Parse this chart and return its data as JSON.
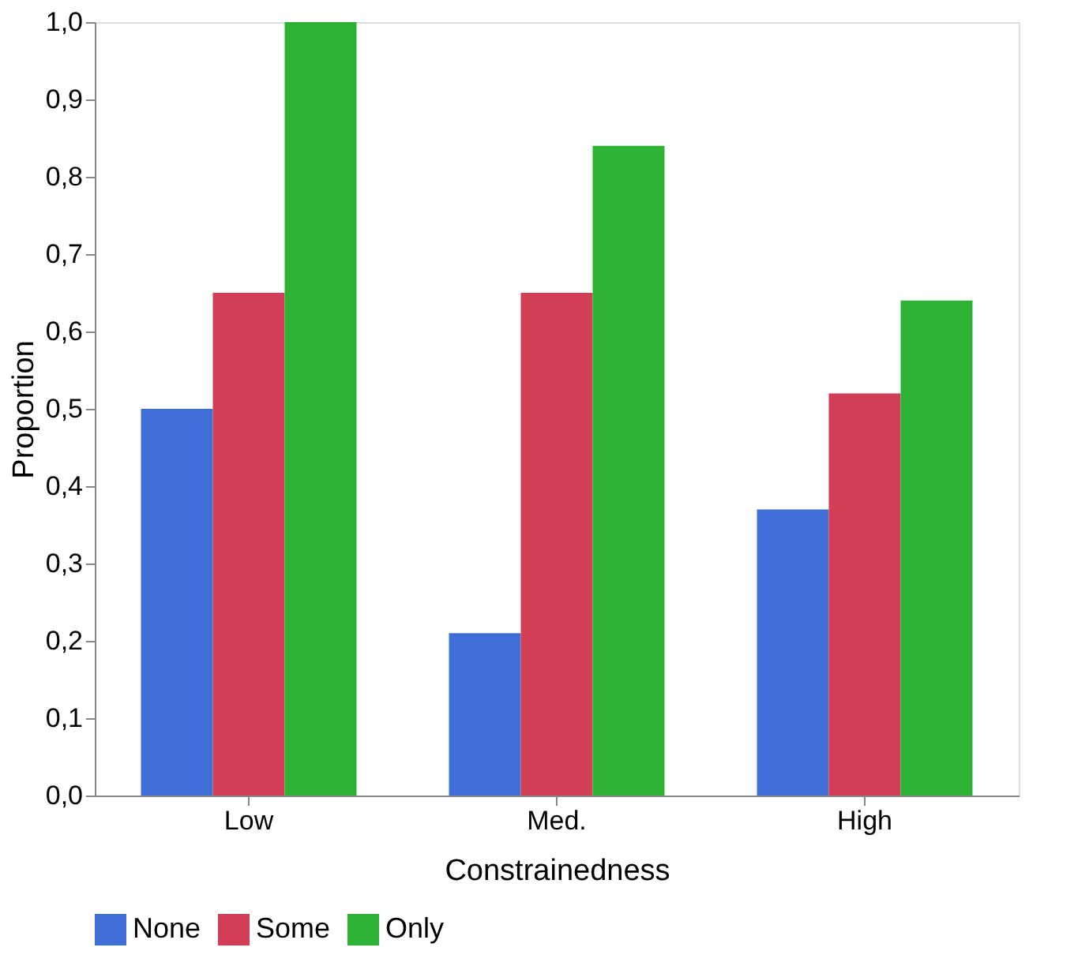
{
  "chart_data": {
    "type": "bar",
    "xlabel": "Constrainedness",
    "ylabel": "Proportion",
    "categories": [
      "Low",
      "Med.",
      "High"
    ],
    "series": [
      {
        "name": "None",
        "color": "#3f6fd6",
        "values": [
          0.5,
          0.21,
          0.37
        ]
      },
      {
        "name": "Some",
        "color": "#d03f55",
        "values": [
          0.65,
          0.65,
          0.52
        ]
      },
      {
        "name": "Only",
        "color": "#2eb236",
        "values": [
          1.0,
          0.84,
          0.64
        ]
      }
    ],
    "ylim": [
      0,
      1
    ],
    "yticks": [
      {
        "value": 0,
        "label": "0,0"
      },
      {
        "value": 0.1,
        "label": "0,1"
      },
      {
        "value": 0.2,
        "label": "0,2"
      },
      {
        "value": 0.3,
        "label": "0,3"
      },
      {
        "value": 0.4,
        "label": "0,4"
      },
      {
        "value": 0.5,
        "label": "0,5"
      },
      {
        "value": 0.6,
        "label": "0,6"
      },
      {
        "value": 0.7,
        "label": "0,7"
      },
      {
        "value": 0.8,
        "label": "0,8"
      },
      {
        "value": 0.9,
        "label": "0,9"
      },
      {
        "value": 1,
        "label": "1,0"
      }
    ],
    "grid": false,
    "legend": "bottom"
  }
}
